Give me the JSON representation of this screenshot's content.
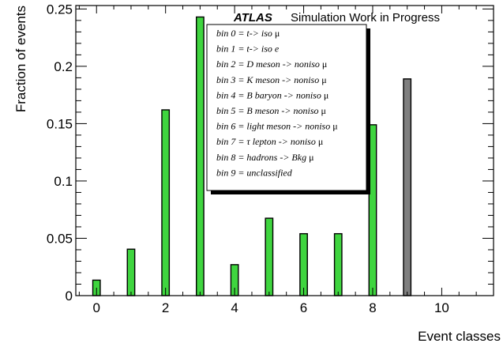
{
  "chart_data": {
    "type": "bar",
    "x": [
      0,
      1,
      2,
      3,
      4,
      5,
      6,
      7,
      8,
      9
    ],
    "values": [
      0.0135,
      0.0405,
      0.162,
      0.243,
      0.027,
      0.0675,
      0.054,
      0.054,
      0.149,
      0.189
    ],
    "bar_colors": [
      "#3fd53f",
      "#3fd53f",
      "#3fd53f",
      "#3fd53f",
      "#3fd53f",
      "#3fd53f",
      "#3fd53f",
      "#3fd53f",
      "#3fd53f",
      "#7f7f7f"
    ],
    "xlabel": "Event classes",
    "ylabel": "Fraction of events",
    "xlim": [
      -0.6,
      11.5
    ],
    "ylim": [
      0,
      0.253
    ],
    "x_ticks": [
      0,
      2,
      4,
      6,
      8,
      10
    ],
    "x_tick_labels": [
      "0",
      "2",
      "4",
      "6",
      "8",
      "10"
    ],
    "y_ticks": [
      0,
      0.05,
      0.1,
      0.15,
      0.2,
      0.25
    ],
    "y_tick_labels": [
      "0",
      "0.05",
      "0.1",
      "0.15",
      "0.2",
      "0.25"
    ],
    "grid": false,
    "legend_placement": "top-center",
    "atlas_label": "ATLAS",
    "atlas_sublabel": "Simulation Work in Progress",
    "legend_entries": [
      {
        "text": "bin 0 = t-> iso ",
        "symbol": "μ"
      },
      {
        "text": "bin 1 = t-> iso e",
        "symbol": ""
      },
      {
        "text": "bin 2 = D meson -> noniso ",
        "symbol": "μ"
      },
      {
        "text": "bin 3 = K meson -> noniso ",
        "symbol": "μ"
      },
      {
        "text": "bin 4 = B baryon -> noniso ",
        "symbol": "μ"
      },
      {
        "text": "bin 5 = B meson -> noniso ",
        "symbol": "μ"
      },
      {
        "text": "bin 6 = light meson -> noniso ",
        "symbol": "μ"
      },
      {
        "text": "bin 7 = τ lepton -> noniso ",
        "symbol": "μ"
      },
      {
        "text": "bin 8 = hadrons -> Bkg ",
        "symbol": "μ"
      },
      {
        "text": "bin 9 = unclassified",
        "symbol": ""
      }
    ],
    "colors": {
      "signal_bar": "#3fd53f",
      "unclassified_bar": "#7f7f7f",
      "axis": "#000000"
    }
  }
}
